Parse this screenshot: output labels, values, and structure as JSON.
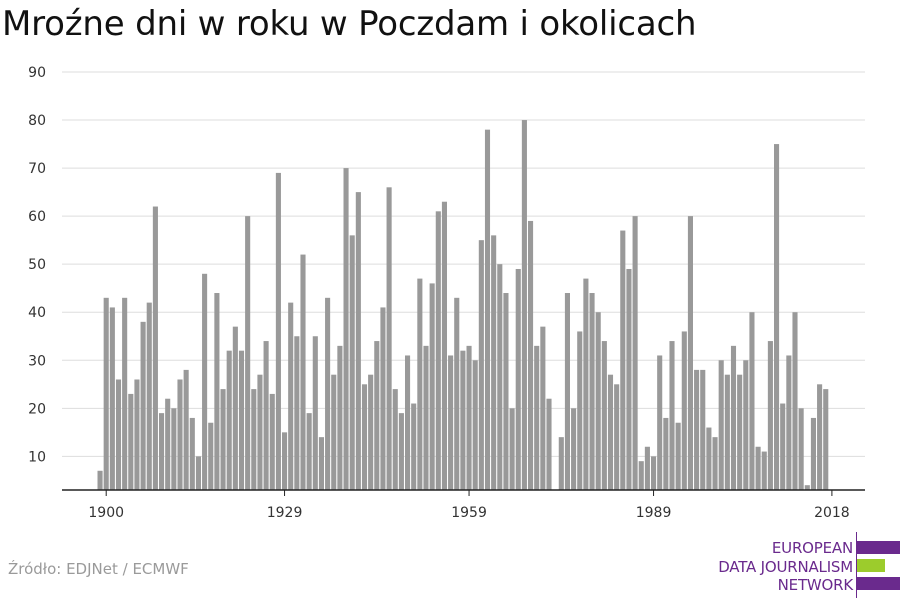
{
  "title": "Mroźne dni w roku w Poczdam i okolicach",
  "source": "Źródło: EDJNet / ECMWF",
  "logo": {
    "lines": [
      "EUROPEAN",
      "DATA JOURNALISM",
      "NETWORK"
    ],
    "colors": {
      "purple": "#6a2a8d",
      "green": "#9ccc2c"
    }
  },
  "colors": {
    "bar": "#999999",
    "grid": "#dddddd",
    "axis": "#222222"
  },
  "chart_data": {
    "type": "bar",
    "title": "Mroźne dni w roku w Poczdam i okolicach",
    "xlabel": "",
    "ylabel": "",
    "ylim": [
      3,
      90
    ],
    "yticks": [
      10,
      20,
      30,
      40,
      50,
      60,
      70,
      80,
      90
    ],
    "xticks": [
      1900,
      1929,
      1959,
      1989,
      2018
    ],
    "grid": true,
    "x_start": 1899,
    "values": [
      7,
      43,
      41,
      26,
      43,
      23,
      26,
      38,
      42,
      62,
      19,
      22,
      20,
      26,
      28,
      18,
      10,
      48,
      17,
      44,
      24,
      32,
      37,
      32,
      60,
      24,
      27,
      34,
      23,
      69,
      15,
      42,
      35,
      52,
      19,
      35,
      14,
      43,
      27,
      33,
      70,
      56,
      65,
      25,
      27,
      34,
      41,
      66,
      24,
      19,
      31,
      21,
      47,
      33,
      46,
      61,
      63,
      31,
      43,
      32,
      33,
      30,
      55,
      78,
      56,
      50,
      44,
      20,
      49,
      80,
      59,
      33,
      37,
      22,
      3,
      14,
      44,
      20,
      36,
      47,
      44,
      40,
      34,
      27,
      25,
      57,
      49,
      60,
      9,
      12,
      10,
      31,
      18,
      34,
      17,
      36,
      60,
      28,
      28,
      16,
      14,
      30,
      27,
      33,
      27,
      30,
      40,
      12,
      11,
      34,
      75,
      21,
      31,
      40,
      20,
      4,
      18,
      25,
      24
    ]
  }
}
